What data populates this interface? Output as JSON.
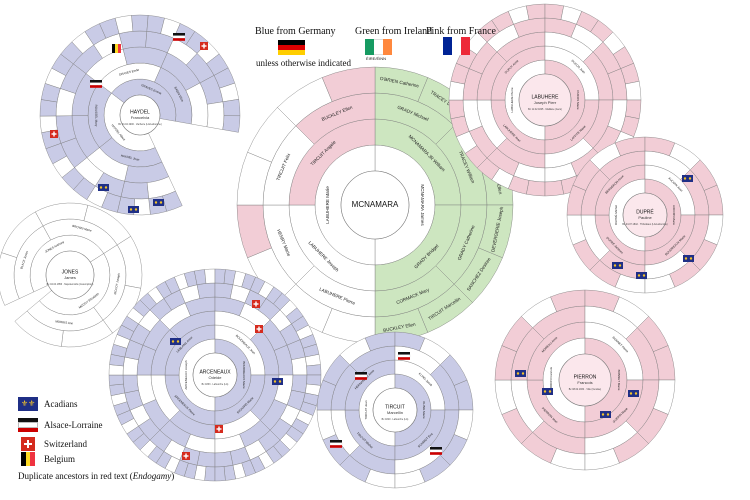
{
  "origin_legend": {
    "germany": "Blue from Germany",
    "ireland": "Green from Ireland",
    "france": "Pink from France",
    "note": "unless otherwise indicated",
    "ireland_flag_caption": "ÉIRE/ÉINN"
  },
  "key": {
    "items": [
      {
        "label": "Acadians",
        "icon": "acadian-flag-icon"
      },
      {
        "label": "Alsace-Lorraine",
        "icon": "alsace-lorraine-flag-icon"
      },
      {
        "label": "Switzerland",
        "icon": "swiss-flag-icon"
      },
      {
        "label": "Belgium",
        "icon": "belgian-flag-icon"
      }
    ],
    "endogamy_prefix": "Duplicate ancestors in red text (",
    "endogamy_word": "Endogamy",
    "endogamy_suffix": ")"
  },
  "colors": {
    "germany_blue": "#c9cbe6",
    "ireland_green": "#cde6c0",
    "france_pink": "#f2cdd6",
    "line": "#7a7a7a",
    "endogamy_red": "#c0392b"
  },
  "fans": [
    {
      "id": "haydel",
      "surname": "HAYDEL",
      "given": "Francelvia",
      "detail": "Bc 04.04.1900 · Vacherie (LA/Lafourche)",
      "rings": 5,
      "tint": "blue",
      "segments": {
        "ring1": [
          "HAYDEL Albert",
          "GRAVES Emma"
        ],
        "ring2": [
          "HAYDEL Jean",
          "ROUSSEL Mary",
          "GRAVES Emile",
          "BABIN Eliza"
        ]
      }
    },
    {
      "id": "mcnamara",
      "surname": "MCNAMARA",
      "given": "",
      "rings": 4,
      "tint": "mixed",
      "segments": {
        "ring1": [
          "MCNAMARA James",
          "LABUHERE Marie"
        ],
        "ring2": [
          "MCNAMARA JR William",
          "GRADY Bridget",
          "LABUHERE Joseph",
          "TIRCUIT Angele"
        ],
        "ring3": [
          "GRADY Michael",
          "TRACEY William",
          "GRADY Catherine",
          "CORMACK Mary",
          "LABUHERE Pierre",
          "HENRY Marie",
          "TIRCUIT Felix",
          "BUCKLEY Ellen"
        ],
        "ring4": [
          "O'BRIEN Catherine",
          "TRACEY Daniel",
          "CORMACK Mary",
          "GRADY Ellen",
          "DEVERGERIE Joseph",
          "SANCHEZ Desiree",
          "TIRCUIT Marcellin",
          "BUCKLEY Ellen"
        ]
      }
    },
    {
      "id": "labuhere",
      "surname": "LABUHERE",
      "given": "Joseph Pierr",
      "detail": "Bc 11.02.1825 · Maillane (Gers)",
      "rings": 5,
      "tint": "pink",
      "segments": {
        "ring1": [
          "LABUHERE Pierre",
          "DUCOS Marie"
        ],
        "ring2": [
          "LABUHERE Jean",
          "DUPUY Anne",
          "DUCOS Jean",
          "LAFFITE Marie"
        ]
      }
    },
    {
      "id": "dupre",
      "surname": "DUPRÉ",
      "given": "Pauline",
      "detail": "Bc 04.07.1842 · Thibodaux (LA/Lafourche)",
      "rings": 4,
      "tint": "pink",
      "segments": {
        "ring1": [
          "DUPRÉ Michel",
          "AUCOIN Marie"
        ],
        "ring2": [
          "DUPRÉ Jacques",
          "BERGERON Anne",
          "AUCOIN Jean",
          "BOUDREAUX Marie"
        ]
      }
    },
    {
      "id": "jones",
      "surname": "JONES",
      "given": "James",
      "detail": "Bc 04.04.1856 · Napoleonville (Assumption)",
      "rings": 3,
      "tint": "white",
      "segments": {
        "ring1": [
          "JONES Anthony",
          "MCCOY Elizabeth"
        ],
        "ring2": [
          "BLACK Jones",
          "BROWN Marie",
          "MCCOY Joseph",
          "MORRIS Ann"
        ]
      }
    },
    {
      "id": "arceneaux",
      "surname": "ARCENEAUX",
      "given": "Odeide",
      "detail": "Bc 1863 · Lafourche (LA)",
      "rings": 6,
      "tint": "blue",
      "segments": {
        "ring1": [
          "ARCENEAUX Joseph",
          "BOUDREAUX Marie"
        ],
        "ring2": [
          "ARCENEAUX Pierre",
          "LEBLANC Anne",
          "BOUDREAUX Jean",
          "RICHARD Marie"
        ]
      }
    },
    {
      "id": "tircuit",
      "surname": "TIRCUIT",
      "given": "Marcellin",
      "detail": "Bc 1820 · Lafourche (LA)",
      "rings": 4,
      "tint": "blue",
      "segments": {
        "ring1": [
          "TIRCUIT Jean",
          "KLING Marie"
        ],
        "ring2": [
          "TIRCUIT Michel",
          "HERNANDEZ Anne",
          "KLING Jacob",
          "SCHMIDT Eva"
        ]
      }
    },
    {
      "id": "pierron",
      "surname": "PIERRON",
      "given": "Francois",
      "detail": "Bc 08.02.1834 · Ville (Vendée)",
      "rings": 4,
      "tint": "pink",
      "segments": {
        "ring1": [
          "PIERRON Francois",
          "BONNET Marie"
        ],
        "ring2": [
          "PIERRON Jean",
          "MOREAU Anne",
          "BONNET Pierre",
          "GUERIN Marie"
        ]
      }
    }
  ]
}
